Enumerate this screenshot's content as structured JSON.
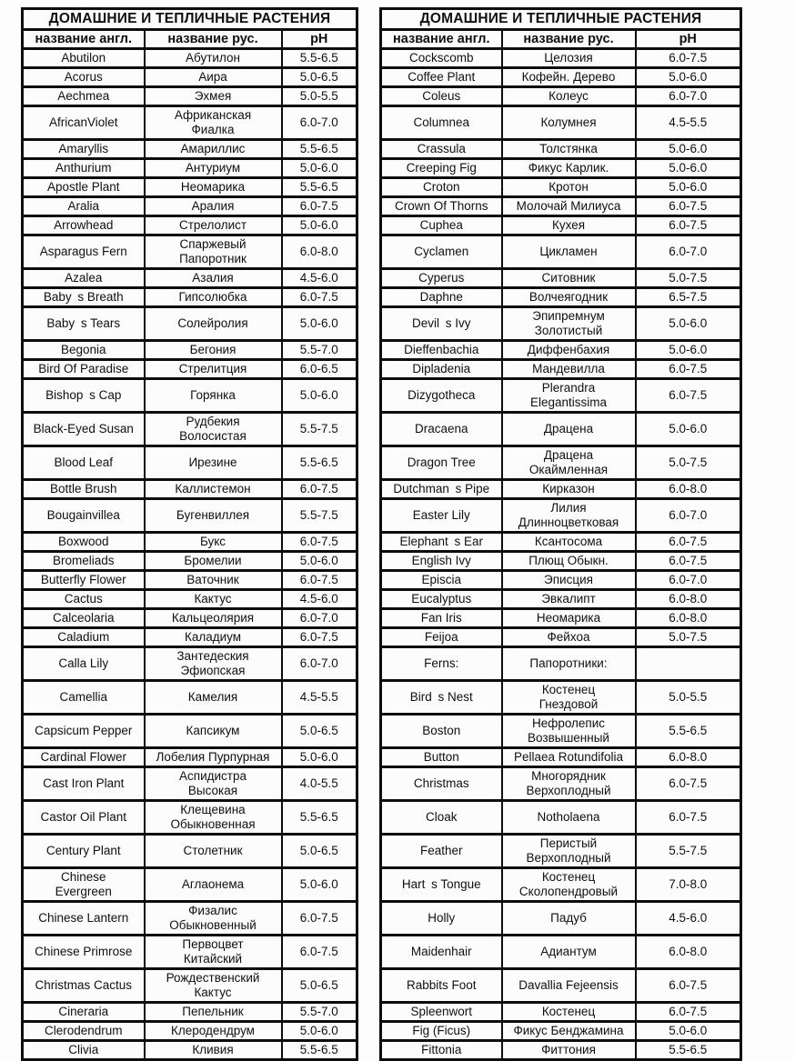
{
  "colors": {
    "border": "#0d0d0d",
    "text": "#101010",
    "background": "#fdfdfd"
  },
  "tables": [
    {
      "title": "ДОМАШНИЕ И ТЕПЛИЧНЫЕ РАСТЕНИЯ",
      "columns": [
        "название англ.",
        "название рус.",
        "pH"
      ],
      "rows": [
        {
          "en": "Abutilon",
          "ru": "Абутилон",
          "ph": "5.5-6.5"
        },
        {
          "en": "Acorus",
          "ru": "Аира",
          "ph": "5.0-6.5"
        },
        {
          "en": "Aechmea",
          "ru": "Эхмея",
          "ph": "5.0-5.5"
        },
        {
          "en": "AfricanViolet",
          "ru": "Африканская\nФиалка",
          "ph": "6.0-7.0",
          "tall": true
        },
        {
          "en": "Amaryllis",
          "ru": "Амариллис",
          "ph": "5.5-6.5"
        },
        {
          "en": "Anthurium",
          "ru": "Антуриум",
          "ph": "5.0-6.0"
        },
        {
          "en": "Apostle Plant",
          "ru": "Неомарика",
          "ph": "5.5-6.5"
        },
        {
          "en": "Aralia",
          "ru": "Аралия",
          "ph": "6.0-7.5"
        },
        {
          "en": "Arrowhead",
          "ru": "Стрелолист",
          "ph": "5.0-6.0"
        },
        {
          "en": "Asparagus Fern",
          "ru": "Спаржевый\nПапоротник",
          "ph": "6.0-8.0",
          "tall": true
        },
        {
          "en": "Azalea",
          "ru": "Азалия",
          "ph": "4.5-6.0"
        },
        {
          "en": "Baby s Breath",
          "ru": "Гипсолюбка",
          "ph": "6.0-7.5"
        },
        {
          "en": "Baby s Tears",
          "ru": "Солейролия",
          "ph": "5.0-6.0",
          "tall": true
        },
        {
          "en": "Begonia",
          "ru": "Бегония",
          "ph": "5.5-7.0"
        },
        {
          "en": "Bird Of Paradise",
          "ru": "Стрелитция",
          "ph": "6.0-6.5"
        },
        {
          "en": "Bishop s Cap",
          "ru": "Горянка",
          "ph": "5.0-6.0",
          "tall": true
        },
        {
          "en": "Black-Eyed Susan",
          "ru": "Рудбекия\nВолосистая",
          "ph": "5.5-7.5",
          "tall": true
        },
        {
          "en": "Blood Leaf",
          "ru": "Ирезине",
          "ph": "5.5-6.5",
          "tall": true
        },
        {
          "en": "Bottle Brush",
          "ru": "Каллистемон",
          "ph": "6.0-7.5"
        },
        {
          "en": "Bougainvillea",
          "ru": "Бугенвиллея",
          "ph": "5.5-7.5",
          "tall": true
        },
        {
          "en": "Boxwood",
          "ru": "Букс",
          "ph": "6.0-7.5"
        },
        {
          "en": "Bromeliads",
          "ru": "Бромелии",
          "ph": "5.0-6.0"
        },
        {
          "en": "Butterfly Flower",
          "ru": "Ваточник",
          "ph": "6.0-7.5"
        },
        {
          "en": "Cactus",
          "ru": "Кактус",
          "ph": "4.5-6.0"
        },
        {
          "en": "Calceolaria",
          "ru": "Кальцеолярия",
          "ph": "6.0-7.0"
        },
        {
          "en": "Caladium",
          "ru": "Каладиум",
          "ph": "6.0-7.5"
        },
        {
          "en": "Calla Lily",
          "ru": "Зантедеския\nЭфиопская",
          "ph": "6.0-7.0",
          "tall": true
        },
        {
          "en": "Camellia",
          "ru": "Камелия",
          "ph": "4.5-5.5",
          "tall": true
        },
        {
          "en": "Capsicum Pepper",
          "ru": "Капсикум",
          "ph": "5.0-6.5",
          "tall": true
        },
        {
          "en": "Cardinal Flower",
          "ru": "Лобелия Пурпурная",
          "ph": "5.0-6.0"
        },
        {
          "en": "Cast Iron Plant",
          "ru": "Аспидистра\nВысокая",
          "ph": "4.0-5.5",
          "tall": true
        },
        {
          "en": "Castor Oil Plant",
          "ru": "Клещевина\nОбыкновенная",
          "ph": "5.5-6.5",
          "tall": true
        },
        {
          "en": "Century Plant",
          "ru": "Столетник",
          "ph": "5.0-6.5",
          "tall": true
        },
        {
          "en": "Chinese\nEvergreen",
          "ru": "Аглаонема",
          "ph": "5.0-6.0",
          "tall": true
        },
        {
          "en": "Chinese Lantern",
          "ru": "Физалис\nОбыкновенный",
          "ph": "6.0-7.5",
          "tall": true
        },
        {
          "en": "Chinese Primrose",
          "ru": "Первоцвет\nКитайский",
          "ph": "6.0-7.5",
          "tall": true
        },
        {
          "en": "Christmas Cactus",
          "ru": "Рождественский\nКактус",
          "ph": "5.0-6.5",
          "tall": true
        },
        {
          "en": "Cineraria",
          "ru": "Пепельник",
          "ph": "5.5-7.0"
        },
        {
          "en": "Clerodendrum",
          "ru": "Клеродендрум",
          "ph": "5.0-6.0"
        },
        {
          "en": "Clivia",
          "ru": "Кливия",
          "ph": "5.5-6.5"
        }
      ]
    },
    {
      "title": "ДОМАШНИЕ И ТЕПЛИЧНЫЕ РАСТЕНИЯ",
      "columns": [
        "название англ.",
        "название рус.",
        "pH"
      ],
      "rows": [
        {
          "en": "Cockscomb",
          "ru": "Целозия",
          "ph": "6.0-7.5"
        },
        {
          "en": "Coffee Plant",
          "ru": "Кофейн. Дерево",
          "ph": "5.0-6.0"
        },
        {
          "en": "Coleus",
          "ru": "Колеус",
          "ph": "6.0-7.0"
        },
        {
          "en": "Columnea",
          "ru": "Колумнея",
          "ph": "4.5-5.5",
          "tall": true
        },
        {
          "en": "Crassula",
          "ru": "Толстянка",
          "ph": "5.0-6.0"
        },
        {
          "en": "Creeping Fig",
          "ru": "Фикус Карлик.",
          "ph": "5.0-6.0"
        },
        {
          "en": "Croton",
          "ru": "Кротон",
          "ph": "5.0-6.0"
        },
        {
          "en": "Crown Of Thorns",
          "ru": "Молочай Милиуса",
          "ph": "6.0-7.5"
        },
        {
          "en": "Cuphea",
          "ru": "Кухея",
          "ph": "6.0-7.5"
        },
        {
          "en": "Cyclamen",
          "ru": "Цикламен",
          "ph": "6.0-7.0",
          "tall": true
        },
        {
          "en": "Cyperus",
          "ru": "Ситовник",
          "ph": "5.0-7.5"
        },
        {
          "en": "Daphne",
          "ru": "Волчеягодник",
          "ph": "6.5-7.5"
        },
        {
          "en": "Devil s Ivy",
          "ru": "Эпипремнум\nЗолотистый",
          "ph": "5.0-6.0",
          "tall": true
        },
        {
          "en": "Dieffenbachia",
          "ru": "Диффенбахия",
          "ph": "5.0-6.0"
        },
        {
          "en": "Dipladenia",
          "ru": "Мандевилла",
          "ph": "6.0-7.5"
        },
        {
          "en": "Dizygotheca",
          "ru": "Plerandra\nElegantissima",
          "ph": "6.0-7.5",
          "tall": true
        },
        {
          "en": "Dracaena",
          "ru": "Драцена",
          "ph": "5.0-6.0",
          "tall": true
        },
        {
          "en": "Dragon Tree",
          "ru": "Драцена\nОкаймленная",
          "ph": "5.0-7.5",
          "tall": true
        },
        {
          "en": "Dutchman s Pipe",
          "ru": "Кирказон",
          "ph": "6.0-8.0"
        },
        {
          "en": "Easter Lily",
          "ru": "Лилия\nДлинноцветковая",
          "ph": "6.0-7.0",
          "tall": true
        },
        {
          "en": "Elephant s Ear",
          "ru": "Ксантосома",
          "ph": "6.0-7.5"
        },
        {
          "en": "English Ivy",
          "ru": "Плющ Обыкн.",
          "ph": "6.0-7.5"
        },
        {
          "en": "Episcia",
          "ru": "Эписция",
          "ph": "6.0-7.0"
        },
        {
          "en": "Eucalyptus",
          "ru": "Эвкалипт",
          "ph": "6.0-8.0"
        },
        {
          "en": "Fan Iris",
          "ru": "Неомарика",
          "ph": "6.0-8.0"
        },
        {
          "en": "Feijoa",
          "ru": "Фейхоа",
          "ph": "5.0-7.5"
        },
        {
          "en": "Ferns:",
          "ru": "Папоротники:",
          "ph": "",
          "tall": true
        },
        {
          "en": "Bird s Nest",
          "ru": "Костенец\nГнездовой",
          "ph": "5.0-5.5",
          "tall": true
        },
        {
          "en": "Boston",
          "ru": "Нефролепис\nВозвышенный",
          "ph": "5.5-6.5",
          "tall": true
        },
        {
          "en": "Button",
          "ru": "Pellaea Rotundifolia",
          "ph": "6.0-8.0"
        },
        {
          "en": "Christmas",
          "ru": "Многорядник\nВерхоплодный",
          "ph": "6.0-7.5",
          "tall": true
        },
        {
          "en": "Cloak",
          "ru": "Notholaena",
          "ph": "6.0-7.5",
          "tall": true
        },
        {
          "en": "Feather",
          "ru": "Перистый\nВерхоплодный",
          "ph": "5.5-7.5",
          "tall": true
        },
        {
          "en": "Hart s Tongue",
          "ru": "Костенец\nСколопендровый",
          "ph": "7.0-8.0",
          "tall": true
        },
        {
          "en": "Holly",
          "ru": "Падуб",
          "ph": "4.5-6.0",
          "tall": true
        },
        {
          "en": "Maidenhair",
          "ru": "Адиантум",
          "ph": "6.0-8.0",
          "tall": true
        },
        {
          "en": "Rabbits Foot",
          "ru": "Davallia Fejeensis",
          "ph": "6.0-7.5",
          "tall": true
        },
        {
          "en": "Spleenwort",
          "ru": "Костенец",
          "ph": "6.0-7.5"
        },
        {
          "en": "Fig (Ficus)",
          "ru": "Фикус Бенджамина",
          "ph": "5.0-6.0"
        },
        {
          "en": "Fittonia",
          "ru": "Фиттония",
          "ph": "5.5-6.5"
        }
      ]
    }
  ]
}
